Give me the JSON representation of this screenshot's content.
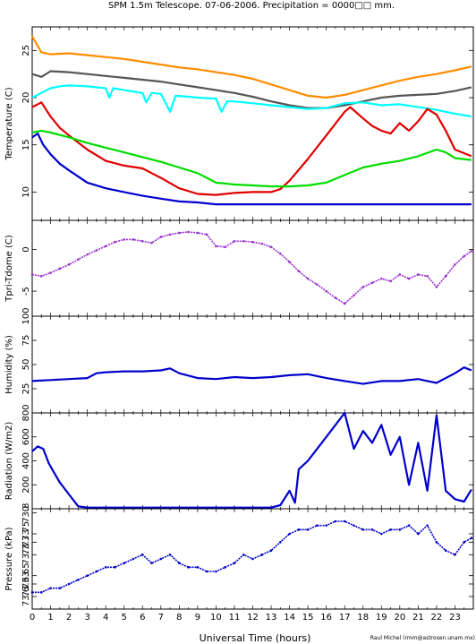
{
  "title": "SPM 1.5m Telescope. 07-06-2006. Precipitation = 0000□□ mm.",
  "xlabel": "Universal Time (hours)",
  "credit": "Raul Michel (rmm@astrosen.unam.mx)",
  "chart_data": [
    {
      "type": "line",
      "ylabel": "Temperature (C)",
      "ylim": [
        7,
        27.5
      ],
      "yticks": [
        10,
        15,
        20,
        25
      ],
      "xlim": [
        0,
        24
      ],
      "series": [
        {
          "color": "#ff8c00",
          "x": [
            0,
            0.5,
            1,
            2,
            3,
            4,
            5,
            6,
            7,
            8,
            9,
            10,
            11,
            12,
            13,
            14,
            15,
            16,
            17,
            18,
            19,
            20,
            21,
            22,
            23,
            23.9
          ],
          "y": [
            26.5,
            24.8,
            24.6,
            24.7,
            24.5,
            24.3,
            24.1,
            23.8,
            23.5,
            23.2,
            23.0,
            22.7,
            22.4,
            22.0,
            21.4,
            20.8,
            20.2,
            20.0,
            20.3,
            20.8,
            21.3,
            21.8,
            22.2,
            22.5,
            22.9,
            23.3
          ]
        },
        {
          "color": "#555555",
          "x": [
            0,
            0.5,
            1,
            2,
            3,
            4,
            5,
            6,
            7,
            8,
            9,
            10,
            11,
            12,
            13,
            14,
            15,
            16,
            17,
            18,
            19,
            20,
            21,
            22,
            23,
            23.9
          ],
          "y": [
            22.5,
            22.2,
            22.8,
            22.7,
            22.5,
            22.3,
            22.1,
            21.9,
            21.7,
            21.4,
            21.1,
            20.8,
            20.5,
            20.1,
            19.6,
            19.2,
            18.9,
            18.9,
            19.2,
            19.6,
            20.0,
            20.2,
            20.3,
            20.4,
            20.7,
            21.1
          ]
        },
        {
          "color": "#00ffff",
          "x": [
            0,
            0.5,
            1,
            1.5,
            2,
            3,
            4,
            4.2,
            4.4,
            5,
            6,
            6.2,
            6.5,
            7,
            7.5,
            7.8,
            8.5,
            9,
            10,
            10.3,
            10.6,
            11,
            12,
            13,
            14,
            15,
            16,
            17,
            18,
            19,
            20,
            21,
            22,
            23,
            23.9
          ],
          "y": [
            20.0,
            20.5,
            21.0,
            21.2,
            21.3,
            21.2,
            21.0,
            20.0,
            21.0,
            20.8,
            20.5,
            19.5,
            20.5,
            20.4,
            18.5,
            20.2,
            20.1,
            20.0,
            19.9,
            18.5,
            19.6,
            19.6,
            19.4,
            19.2,
            19.0,
            18.8,
            18.9,
            19.4,
            19.5,
            19.2,
            19.3,
            19.0,
            18.7,
            18.3,
            18.0
          ]
        },
        {
          "color": "#e00000",
          "x": [
            0,
            0.5,
            1,
            1.5,
            2,
            3,
            4,
            5,
            6,
            6.5,
            7,
            8,
            9,
            10,
            11,
            12,
            13,
            13.5,
            14,
            15,
            16,
            17,
            17.3,
            18,
            18.5,
            19,
            19.5,
            20,
            20.5,
            21,
            21.5,
            22,
            22.5,
            23,
            23.9
          ],
          "y": [
            19.0,
            19.5,
            18.0,
            16.8,
            16.0,
            14.5,
            13.3,
            12.8,
            12.5,
            12.0,
            11.5,
            10.4,
            9.8,
            9.7,
            9.9,
            10.0,
            10.0,
            10.3,
            11.2,
            13.5,
            16.0,
            18.5,
            19.0,
            17.8,
            17.0,
            16.5,
            16.2,
            17.3,
            16.5,
            17.5,
            18.8,
            18.2,
            16.5,
            14.5,
            13.8
          ]
        },
        {
          "color": "#00dd00",
          "x": [
            0,
            0.5,
            1,
            2,
            3,
            4,
            5,
            6,
            7,
            8,
            9,
            10,
            11,
            12,
            13,
            13.5,
            14,
            15,
            16,
            17,
            18,
            19,
            20,
            21,
            22,
            22.5,
            23,
            23.9
          ],
          "y": [
            16.3,
            16.5,
            16.3,
            15.8,
            15.2,
            14.7,
            14.2,
            13.7,
            13.2,
            12.6,
            12.0,
            11.0,
            10.8,
            10.7,
            10.6,
            10.6,
            10.6,
            10.7,
            11.0,
            11.8,
            12.6,
            13.0,
            13.3,
            13.8,
            14.5,
            14.2,
            13.6,
            13.4
          ]
        },
        {
          "color": "#0000cc",
          "x": [
            0,
            0.3,
            0.6,
            1,
            1.5,
            2,
            3,
            4,
            5,
            6,
            7,
            8,
            9,
            10,
            10.5,
            11,
            12,
            13,
            14,
            15,
            16,
            17,
            18,
            19,
            20,
            21,
            22,
            23,
            23.9
          ],
          "y": [
            15.8,
            16.2,
            15.0,
            14.0,
            13.0,
            12.3,
            11.0,
            10.4,
            10.0,
            9.6,
            9.3,
            9.0,
            8.9,
            8.7,
            8.7,
            8.7,
            8.7,
            8.7,
            8.7,
            8.7,
            8.7,
            8.7,
            8.7,
            8.7,
            8.7,
            8.7,
            8.7,
            8.7,
            8.7
          ]
        }
      ]
    },
    {
      "type": "scatter",
      "ylabel": "Tpri-Tdome (C)",
      "ylim": [
        -8,
        3.5
      ],
      "yticks": [
        -5,
        0
      ],
      "xlim": [
        0,
        24
      ],
      "series": [
        {
          "color": "#9b30d0",
          "x": [
            0,
            0.5,
            1,
            1.5,
            2,
            2.5,
            3,
            3.5,
            4,
            4.5,
            5,
            5.5,
            6,
            6.5,
            7,
            7.5,
            8,
            8.5,
            9,
            9.5,
            10,
            10.5,
            11,
            11.5,
            12,
            12.5,
            13,
            13.5,
            14,
            14.5,
            15,
            15.5,
            16,
            16.5,
            17,
            17.5,
            18,
            18.5,
            19,
            19.5,
            20,
            20.5,
            21,
            21.5,
            22,
            22.5,
            23,
            23.5,
            23.9
          ],
          "y": [
            -3.0,
            -3.2,
            -2.8,
            -2.3,
            -1.8,
            -1.2,
            -0.6,
            -0.1,
            0.4,
            0.9,
            1.2,
            1.2,
            1.0,
            0.8,
            1.5,
            1.8,
            2.0,
            2.1,
            2.0,
            1.8,
            0.4,
            0.3,
            1.0,
            1.0,
            0.9,
            0.7,
            0.3,
            -0.5,
            -1.5,
            -2.6,
            -3.5,
            -4.2,
            -5.0,
            -5.8,
            -6.5,
            -5.5,
            -4.5,
            -4.0,
            -3.5,
            -3.8,
            -3.0,
            -3.5,
            -3.0,
            -3.2,
            -4.5,
            -3.2,
            -1.8,
            -0.8,
            -0.2
          ]
        }
      ]
    },
    {
      "type": "line",
      "ylabel": "Humidity (%)",
      "ylim": [
        0,
        100
      ],
      "yticks": [
        25,
        50,
        75,
        100
      ],
      "xlim": [
        0,
        24
      ],
      "series": [
        {
          "color": "#0000cc",
          "x": [
            0,
            1,
            2,
            3,
            3.5,
            4,
            5,
            6,
            7,
            7.5,
            8,
            9,
            10,
            11,
            12,
            13,
            14,
            15,
            16,
            17,
            18,
            19,
            20,
            21,
            21.5,
            22,
            23,
            23.5,
            23.9
          ],
          "y": [
            33,
            34,
            35,
            36,
            41,
            42,
            43,
            43,
            44,
            46,
            41,
            36,
            35,
            37,
            36,
            37,
            39,
            40,
            36,
            33,
            30,
            33,
            33,
            35,
            33,
            31,
            41,
            47,
            44
          ]
        }
      ]
    },
    {
      "type": "line",
      "ylabel": "Radiation (W/m2)",
      "ylim": [
        0,
        800
      ],
      "yticks": [
        0,
        200,
        400,
        600,
        800
      ],
      "xlim": [
        0,
        24
      ],
      "series": [
        {
          "color": "#0000cc",
          "x": [
            0,
            0.3,
            0.6,
            0.9,
            1.2,
            1.5,
            2,
            2.5,
            3,
            4,
            5,
            6,
            7,
            8,
            9,
            10,
            11,
            12,
            13,
            13.5,
            14,
            14.3,
            14.5,
            15,
            16,
            17,
            17.5,
            18,
            18.5,
            19,
            19.5,
            20,
            20.5,
            21,
            21.5,
            22,
            22.5,
            23,
            23.5,
            23.9
          ],
          "y": [
            480,
            520,
            500,
            380,
            300,
            220,
            120,
            20,
            10,
            10,
            10,
            10,
            10,
            10,
            10,
            10,
            10,
            10,
            10,
            30,
            150,
            50,
            330,
            400,
            600,
            800,
            500,
            650,
            550,
            700,
            450,
            600,
            200,
            550,
            150,
            780,
            150,
            80,
            60,
            160
          ]
        }
      ]
    },
    {
      "type": "scatter",
      "ylabel": "Pressure (kPa)",
      "ylim": [
        73.57,
        73.81
      ],
      "yticks_labels": [
        "73.6",
        "73.63",
        "73.65",
        "73.7",
        "73.73",
        "73.75",
        "73.8"
      ],
      "yticks": [
        73.6,
        73.63,
        73.65,
        73.7,
        73.73,
        73.75,
        73.8
      ],
      "xlim": [
        0,
        24
      ],
      "series": [
        {
          "color": "#0000cc",
          "x": [
            0,
            0.5,
            1,
            1.5,
            2,
            2.5,
            3,
            3.5,
            4,
            4.5,
            5,
            5.5,
            6,
            6.5,
            7,
            7.5,
            8,
            8.5,
            9,
            9.5,
            10,
            10.5,
            11,
            11.5,
            12,
            12.5,
            13,
            13.5,
            14,
            14.5,
            15,
            15.5,
            16,
            16.5,
            17,
            17.5,
            18,
            18.5,
            19,
            19.5,
            20,
            20.5,
            21,
            21.5,
            22,
            22.5,
            23,
            23.5,
            23.9
          ],
          "y": [
            73.61,
            73.61,
            73.62,
            73.62,
            73.63,
            73.64,
            73.65,
            73.66,
            73.67,
            73.67,
            73.68,
            73.69,
            73.7,
            73.68,
            73.69,
            73.7,
            73.68,
            73.67,
            73.67,
            73.66,
            73.66,
            73.67,
            73.68,
            73.7,
            73.69,
            73.7,
            73.71,
            73.73,
            73.75,
            73.76,
            73.76,
            73.77,
            73.77,
            73.78,
            73.78,
            73.77,
            73.76,
            73.76,
            73.75,
            73.76,
            73.76,
            73.77,
            73.75,
            73.77,
            73.73,
            73.71,
            73.7,
            73.73,
            73.74
          ]
        }
      ]
    }
  ]
}
